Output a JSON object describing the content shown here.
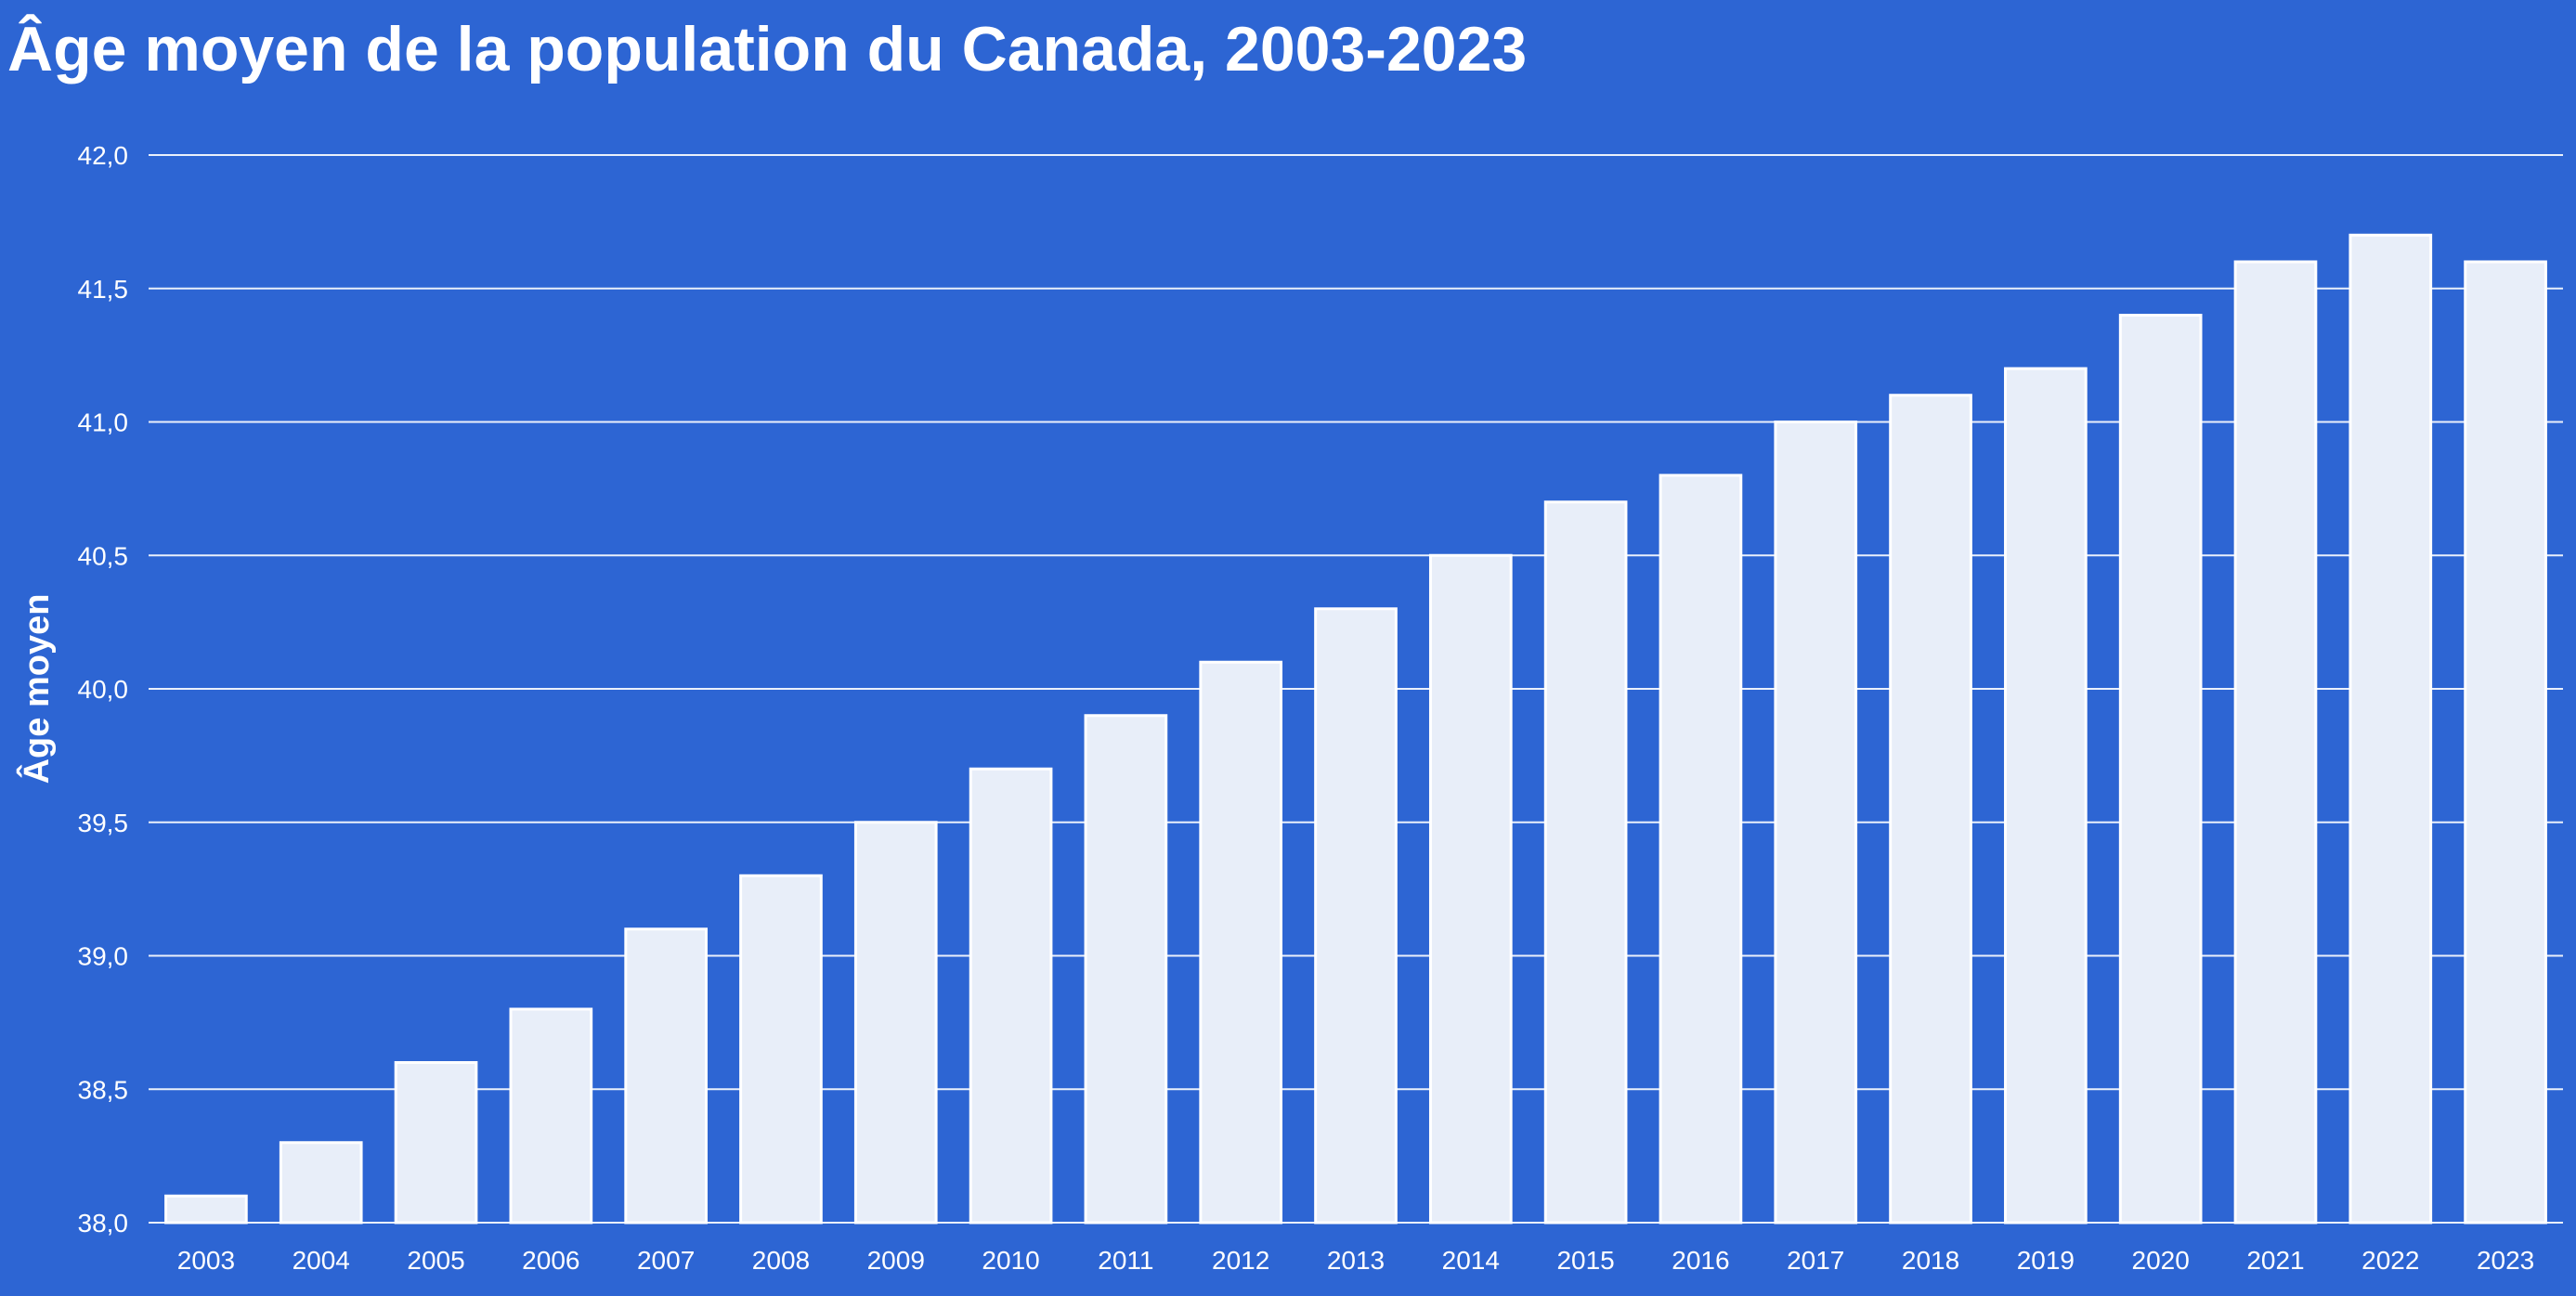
{
  "chart_data": {
    "type": "bar",
    "title": "Âge moyen de la population du Canada, 2003-2023",
    "xlabel": "",
    "ylabel": "Âge moyen",
    "categories": [
      "2003",
      "2004",
      "2005",
      "2006",
      "2007",
      "2008",
      "2009",
      "2010",
      "2011",
      "2012",
      "2013",
      "2014",
      "2015",
      "2016",
      "2017",
      "2018",
      "2019",
      "2020",
      "2021",
      "2022",
      "2023"
    ],
    "values": [
      38.1,
      38.3,
      38.6,
      38.8,
      39.1,
      39.3,
      39.5,
      39.7,
      39.9,
      40.1,
      40.3,
      40.5,
      40.7,
      40.8,
      41.0,
      41.1,
      41.2,
      41.4,
      41.6,
      41.7,
      41.6
    ],
    "ylim": [
      38.0,
      42.0
    ],
    "y_ticks": [
      38.0,
      38.5,
      39.0,
      39.5,
      40.0,
      40.5,
      41.0,
      41.5,
      42.0
    ],
    "y_tick_labels": [
      "38,0",
      "38,5",
      "39,0",
      "39,5",
      "40,0",
      "40,5",
      "41,0",
      "41,5",
      "42,0"
    ],
    "grid": true,
    "colors": {
      "background": "#2d65d3",
      "bar_fill": "#e8eef9",
      "bar_stroke": "#ffffff",
      "text": "#ffffff",
      "grid": "#ffffff"
    }
  }
}
